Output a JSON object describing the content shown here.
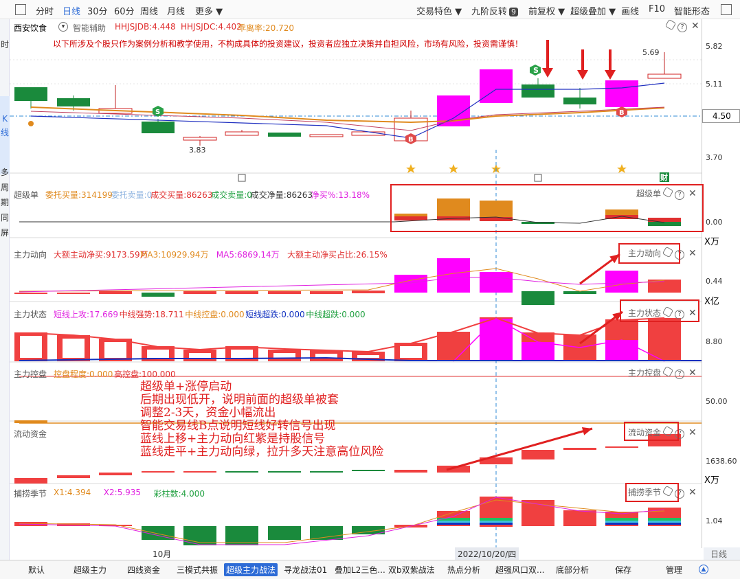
{
  "toolbar": {
    "items": [
      "分时",
      "日线",
      "30分",
      "60分",
      "周线",
      "月线",
      "更多 ▼"
    ],
    "active": "日线",
    "right_items": [
      "交易特色 ▼",
      "九阶反转",
      "前复权 ▼",
      "超级叠加 ▼",
      "画线",
      "F10",
      "智能形态"
    ],
    "nine_badge": "9"
  },
  "left_strip": {
    "labels": [
      "时",
      "K",
      "线",
      "多",
      "周",
      "期",
      "同",
      "屏"
    ],
    "partial_top": "时"
  },
  "stock": {
    "name": "西安饮食",
    "assist": "智能辅助",
    "hhjsjdb": "HHJSJDB:4.448",
    "hhjsjdc": "HHJSJDC:4.402",
    "deviation": "乖离率:20.720",
    "high_label": "5.69",
    "low_label": "3.83",
    "price_tag": "4.50",
    "disclaimer": "以下所涉及个股只作为案例分析和教学使用，不构成具体的投资建议，投资者应独立决策并自担风险，市场有风险，投资需谨慎！"
  },
  "axis": {
    "main_ticks": [
      "5.82",
      "5.11",
      "3.70"
    ],
    "super_tick": "0.00",
    "super_unit": "X万",
    "main_force_tick": "0.44",
    "main_force_unit": "X亿",
    "state_tick": "8.80",
    "control_tick": "50.00",
    "flow_tick": "1638.60",
    "flow_unit": "X万",
    "season_tick": "1.04"
  },
  "panels": {
    "super": {
      "name": "超级单",
      "fields": [
        {
          "text": "委托买量:314199",
          "color": "#e08a1e"
        },
        {
          "text": "委托卖量:0",
          "color": "#8fb4e0"
        },
        {
          "text": "成交买量:86263",
          "color": "#e03030"
        },
        {
          "text": "成交卖量:0",
          "color": "#20a040"
        },
        {
          "text": "成交净量:86263",
          "color": "#333333"
        },
        {
          "text": "净买%:13.18%",
          "color": "#e020e0"
        }
      ],
      "tag": "超级单"
    },
    "main_force": {
      "name": "主力动向",
      "fields": [
        {
          "text": "大额主动净买:9173.59万",
          "color": "#e03030"
        },
        {
          "text": "MA3:10929.94万",
          "color": "#e08a1e"
        },
        {
          "text": "MA5:6869.14万",
          "color": "#e020e0"
        },
        {
          "text": "大额主动净买占比:26.15%",
          "color": "#e03030"
        }
      ],
      "tag": "主力动向"
    },
    "state": {
      "name": "主力状态",
      "fields": [
        {
          "text": "短线上攻:17.669",
          "color": "#e020e0"
        },
        {
          "text": "中线强势:18.711",
          "color": "#e03030"
        },
        {
          "text": "中线控盘:0.000",
          "color": "#e08a1e"
        },
        {
          "text": "短线超跌:0.000",
          "color": "#1030c0"
        },
        {
          "text": "中线超跌:0.000",
          "color": "#20a040"
        }
      ],
      "tag": "主力状态"
    },
    "control": {
      "name": "主力控盘",
      "fields": [
        {
          "text": "控盘程度:0.000",
          "color": "#e08a1e"
        },
        {
          "text": "高控盘:100.000",
          "color": "#e03030"
        }
      ],
      "tag": "主力控盘"
    },
    "flow": {
      "name": "流动资金",
      "tag": "流动资金"
    },
    "season": {
      "name": "捕捞季节",
      "fields": [
        {
          "text": "X1:4.394",
          "color": "#e08a1e"
        },
        {
          "text": "X2:5.935",
          "color": "#e020e0"
        },
        {
          "text": "彩柱数:4.000",
          "color": "#20a040"
        }
      ],
      "tag": "捕捞季节"
    }
  },
  "annotation": {
    "lines": [
      "超级单+涨停启动",
      "后期出现低开，说明前面的超级单被套",
      "调整2-3天，资金小幅流出",
      "智能交易线B点说明短线好转信号出现",
      "蓝线上移+主力动向红紫是持股信号",
      "蓝线走平+主力动向绿，拉升多天注意高位风险"
    ]
  },
  "xaxis": {
    "month_label": "10月",
    "date_label": "2022/10/20/四",
    "right_label": "日线"
  },
  "markers": {
    "s_label": "S",
    "b_label": "B",
    "finance_label": "财"
  },
  "bottom_tabs": [
    "默认",
    "超级主力",
    "四线资金",
    "三模式共振",
    "超级主力战法",
    "寻龙战法01",
    "叠加L2三色...",
    "双b双紫战法",
    "热点分析",
    "超强风口双...",
    "底部分析",
    "保存",
    "管理"
  ],
  "bottom_active": "超级主力战法",
  "colors": {
    "up": "#f04040",
    "down": "#1a8a3c",
    "limit_up": "#ff00ff",
    "highlight": "#e02020",
    "accent": "#2d6bd6"
  }
}
